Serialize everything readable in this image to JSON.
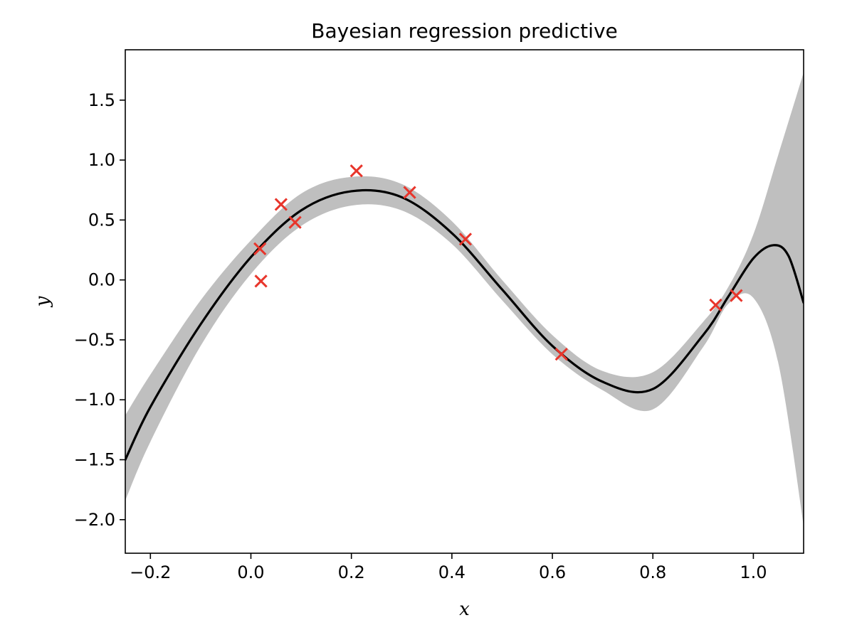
{
  "chart_data": {
    "type": "line",
    "title": "Bayesian regression predictive",
    "xlabel": "x",
    "ylabel": "y",
    "xlim": [
      -0.25,
      1.1
    ],
    "ylim": [
      -2.28,
      1.92
    ],
    "grid": false,
    "x_ticks": [
      -0.2,
      0.0,
      0.2,
      0.4,
      0.6,
      0.8,
      1.0
    ],
    "x_tick_labels": [
      "−0.2",
      "0.0",
      "0.2",
      "0.4",
      "0.6",
      "0.8",
      "1.0"
    ],
    "y_ticks": [
      -2.0,
      -1.5,
      -1.0,
      -0.5,
      0.0,
      0.5,
      1.0,
      1.5
    ],
    "y_tick_labels": [
      "−2.0",
      "−1.5",
      "−1.0",
      "−0.5",
      "0.0",
      "0.5",
      "1.0",
      "1.5"
    ],
    "colors": {
      "mean_line": "#000000",
      "band_fill": "#bfbfbf",
      "observations": "#e8352b"
    },
    "series": [
      {
        "kind": "band",
        "x": [
          -0.25,
          -0.2,
          -0.1,
          0.0,
          0.1,
          0.2,
          0.3,
          0.4,
          0.5,
          0.6,
          0.7,
          0.8,
          0.9,
          0.95,
          1.0,
          1.05,
          1.1
        ],
        "lower": [
          -1.84,
          -1.35,
          -0.55,
          0.05,
          0.45,
          0.62,
          0.58,
          0.3,
          -0.17,
          -0.62,
          -0.92,
          -1.08,
          -0.56,
          -0.2,
          -0.15,
          -0.7,
          -2.05
        ],
        "upper": [
          -1.13,
          -0.79,
          -0.17,
          0.33,
          0.72,
          0.86,
          0.8,
          0.49,
          0.0,
          -0.46,
          -0.76,
          -0.77,
          -0.35,
          -0.06,
          0.38,
          1.05,
          1.73
        ]
      },
      {
        "kind": "line",
        "x": [
          -0.25,
          -0.2,
          -0.1,
          0.0,
          0.1,
          0.2,
          0.3,
          0.4,
          0.5,
          0.6,
          0.7,
          0.8,
          0.9,
          0.95,
          1.0,
          1.04,
          1.07,
          1.1
        ],
        "y": [
          -1.5,
          -1.06,
          -0.37,
          0.19,
          0.58,
          0.74,
          0.69,
          0.39,
          -0.08,
          -0.55,
          -0.85,
          -0.91,
          -0.46,
          -0.14,
          0.18,
          0.29,
          0.2,
          -0.19
        ]
      },
      {
        "kind": "scatter",
        "marker": "x",
        "x": [
          0.018,
          0.02,
          0.06,
          0.088,
          0.21,
          0.316,
          0.427,
          0.618,
          0.925,
          0.966
        ],
        "y": [
          0.26,
          -0.01,
          0.63,
          0.48,
          0.91,
          0.73,
          0.34,
          -0.62,
          -0.21,
          -0.13
        ]
      }
    ]
  }
}
